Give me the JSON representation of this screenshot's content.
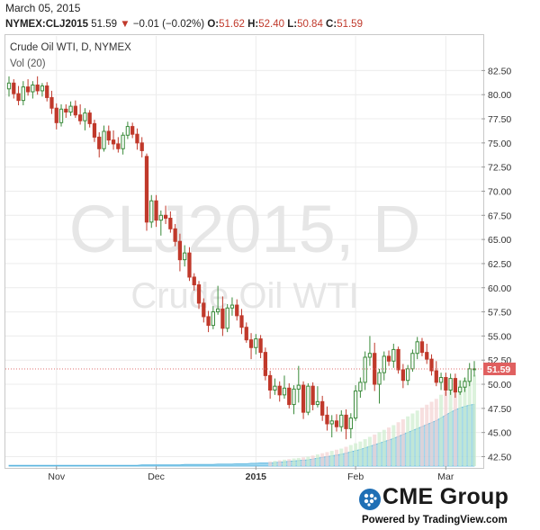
{
  "header": {
    "date": "March 05, 2015",
    "symbol": "NYMEX:CLJ2015",
    "last": "51.59",
    "change": "−0.01 (−0.02%)",
    "open_label": "O:",
    "open": "51.62",
    "high_label": "H:",
    "high": "52.40",
    "low_label": "L:",
    "low": "50.84",
    "close_label": "C:",
    "close": "51.59"
  },
  "footer": {
    "brand": "CME Group",
    "powered": "Powered by TradingView.com"
  },
  "colors": {
    "up": "#3a8a3a",
    "down": "#c0392b",
    "volume_area": "#7ec8e8",
    "price_line": "#e07070",
    "watermark": "#e6e6e6"
  },
  "chart_data": {
    "type": "candlestick",
    "title": "Crude Oil WTI, D, NYMEX",
    "volume_label": "Vol (20)",
    "watermark_symbol": "CLJ2015, D",
    "watermark_name": "Crude Oil WTI",
    "ylim": [
      41.8,
      84.4
    ],
    "y_ticks": [
      "82.50",
      "80.00",
      "77.50",
      "75.00",
      "72.50",
      "70.00",
      "67.50",
      "65.00",
      "62.50",
      "60.00",
      "57.50",
      "55.00",
      "52.50",
      "50.00",
      "47.50",
      "45.00",
      "42.50"
    ],
    "x_ticks": [
      {
        "label": "Nov",
        "index": 10,
        "bold": false
      },
      {
        "label": "Dec",
        "index": 31,
        "bold": false
      },
      {
        "label": "2015",
        "index": 52,
        "bold": true
      },
      {
        "label": "Feb",
        "index": 73,
        "bold": false
      },
      {
        "label": "Mar",
        "index": 92,
        "bold": false
      }
    ],
    "current_price_label": "51.59",
    "current_price": 51.59,
    "candles": [
      {
        "o": 80.6,
        "h": 81.9,
        "l": 79.8,
        "c": 81.2
      },
      {
        "o": 81.2,
        "h": 81.6,
        "l": 79.6,
        "c": 80.1
      },
      {
        "o": 80.1,
        "h": 80.9,
        "l": 78.9,
        "c": 79.4
      },
      {
        "o": 79.4,
        "h": 81.4,
        "l": 78.9,
        "c": 80.8
      },
      {
        "o": 80.8,
        "h": 81.6,
        "l": 79.9,
        "c": 80.3
      },
      {
        "o": 80.3,
        "h": 81.4,
        "l": 79.6,
        "c": 81.0
      },
      {
        "o": 81.0,
        "h": 81.9,
        "l": 80.0,
        "c": 80.4
      },
      {
        "o": 80.4,
        "h": 81.2,
        "l": 79.8,
        "c": 80.9
      },
      {
        "o": 80.9,
        "h": 81.3,
        "l": 79.3,
        "c": 79.7
      },
      {
        "o": 79.7,
        "h": 80.4,
        "l": 78.0,
        "c": 78.6
      },
      {
        "o": 78.6,
        "h": 79.1,
        "l": 76.4,
        "c": 77.1
      },
      {
        "o": 77.1,
        "h": 79.0,
        "l": 76.7,
        "c": 78.5
      },
      {
        "o": 78.5,
        "h": 79.0,
        "l": 77.6,
        "c": 78.2
      },
      {
        "o": 78.2,
        "h": 79.3,
        "l": 77.8,
        "c": 78.8
      },
      {
        "o": 78.8,
        "h": 79.4,
        "l": 77.6,
        "c": 77.9
      },
      {
        "o": 77.9,
        "h": 79.0,
        "l": 76.9,
        "c": 77.3
      },
      {
        "o": 77.3,
        "h": 78.6,
        "l": 76.3,
        "c": 78.1
      },
      {
        "o": 78.1,
        "h": 78.4,
        "l": 76.6,
        "c": 77.0
      },
      {
        "o": 77.0,
        "h": 77.4,
        "l": 75.1,
        "c": 75.6
      },
      {
        "o": 75.6,
        "h": 76.1,
        "l": 73.5,
        "c": 74.4
      },
      {
        "o": 74.4,
        "h": 76.8,
        "l": 74.1,
        "c": 76.2
      },
      {
        "o": 76.2,
        "h": 76.8,
        "l": 74.8,
        "c": 75.3
      },
      {
        "o": 75.3,
        "h": 76.3,
        "l": 74.3,
        "c": 74.9
      },
      {
        "o": 74.9,
        "h": 75.6,
        "l": 74.0,
        "c": 74.4
      },
      {
        "o": 74.4,
        "h": 76.1,
        "l": 73.8,
        "c": 75.8
      },
      {
        "o": 75.8,
        "h": 77.2,
        "l": 75.4,
        "c": 76.7
      },
      {
        "o": 76.7,
        "h": 77.1,
        "l": 75.5,
        "c": 75.9
      },
      {
        "o": 75.9,
        "h": 76.5,
        "l": 74.3,
        "c": 75.0
      },
      {
        "o": 75.0,
        "h": 75.6,
        "l": 73.5,
        "c": 74.2
      },
      {
        "o": 73.6,
        "h": 73.9,
        "l": 65.9,
        "c": 66.8
      },
      {
        "o": 66.8,
        "h": 69.6,
        "l": 66.2,
        "c": 69.0
      },
      {
        "o": 69.0,
        "h": 69.6,
        "l": 66.3,
        "c": 67.0
      },
      {
        "o": 67.0,
        "h": 68.0,
        "l": 65.4,
        "c": 67.5
      },
      {
        "o": 67.5,
        "h": 68.5,
        "l": 66.6,
        "c": 67.2
      },
      {
        "o": 67.2,
        "h": 67.9,
        "l": 65.7,
        "c": 66.1
      },
      {
        "o": 66.1,
        "h": 66.6,
        "l": 64.3,
        "c": 64.8
      },
      {
        "o": 64.8,
        "h": 65.6,
        "l": 61.7,
        "c": 62.9
      },
      {
        "o": 62.9,
        "h": 64.4,
        "l": 62.2,
        "c": 63.6
      },
      {
        "o": 63.6,
        "h": 64.2,
        "l": 60.7,
        "c": 61.1
      },
      {
        "o": 61.1,
        "h": 61.5,
        "l": 59.7,
        "c": 60.3
      },
      {
        "o": 60.3,
        "h": 60.7,
        "l": 57.8,
        "c": 58.4
      },
      {
        "o": 58.4,
        "h": 58.9,
        "l": 56.4,
        "c": 57.0
      },
      {
        "o": 57.0,
        "h": 57.6,
        "l": 55.4,
        "c": 56.1
      },
      {
        "o": 56.1,
        "h": 58.1,
        "l": 55.7,
        "c": 57.5
      },
      {
        "o": 57.5,
        "h": 60.2,
        "l": 57.2,
        "c": 57.8
      },
      {
        "o": 57.8,
        "h": 59.1,
        "l": 55.0,
        "c": 55.8
      },
      {
        "o": 55.8,
        "h": 58.3,
        "l": 55.4,
        "c": 57.9
      },
      {
        "o": 57.9,
        "h": 59.0,
        "l": 57.1,
        "c": 58.2
      },
      {
        "o": 58.2,
        "h": 58.8,
        "l": 56.6,
        "c": 57.1
      },
      {
        "o": 57.1,
        "h": 57.8,
        "l": 55.2,
        "c": 55.9
      },
      {
        "o": 55.9,
        "h": 56.4,
        "l": 54.3,
        "c": 54.6
      },
      {
        "o": 54.6,
        "h": 55.3,
        "l": 52.6,
        "c": 53.8
      },
      {
        "o": 53.8,
        "h": 55.2,
        "l": 53.1,
        "c": 54.7
      },
      {
        "o": 54.7,
        "h": 55.1,
        "l": 52.7,
        "c": 53.3
      },
      {
        "o": 53.3,
        "h": 53.8,
        "l": 50.4,
        "c": 50.9
      },
      {
        "o": 50.9,
        "h": 51.4,
        "l": 48.5,
        "c": 49.4
      },
      {
        "o": 49.4,
        "h": 50.6,
        "l": 48.9,
        "c": 49.8
      },
      {
        "o": 49.8,
        "h": 50.3,
        "l": 48.2,
        "c": 48.9
      },
      {
        "o": 48.9,
        "h": 50.9,
        "l": 48.5,
        "c": 49.6
      },
      {
        "o": 49.6,
        "h": 50.1,
        "l": 47.5,
        "c": 47.9
      },
      {
        "o": 47.9,
        "h": 49.9,
        "l": 46.9,
        "c": 49.5
      },
      {
        "o": 49.5,
        "h": 51.9,
        "l": 48.1,
        "c": 49.9
      },
      {
        "o": 49.9,
        "h": 50.3,
        "l": 46.4,
        "c": 47.1
      },
      {
        "o": 47.1,
        "h": 50.1,
        "l": 46.8,
        "c": 49.8
      },
      {
        "o": 49.8,
        "h": 50.2,
        "l": 47.3,
        "c": 47.9
      },
      {
        "o": 47.9,
        "h": 49.8,
        "l": 47.6,
        "c": 48.2
      },
      {
        "o": 48.2,
        "h": 48.8,
        "l": 46.2,
        "c": 46.8
      },
      {
        "o": 46.8,
        "h": 47.7,
        "l": 45.2,
        "c": 45.9
      },
      {
        "o": 45.9,
        "h": 46.8,
        "l": 44.5,
        "c": 46.2
      },
      {
        "o": 46.2,
        "h": 46.9,
        "l": 45.1,
        "c": 45.6
      },
      {
        "o": 45.6,
        "h": 47.3,
        "l": 45.1,
        "c": 46.8
      },
      {
        "o": 46.8,
        "h": 47.4,
        "l": 44.3,
        "c": 45.4
      },
      {
        "o": 45.4,
        "h": 47.0,
        "l": 44.4,
        "c": 46.5
      },
      {
        "o": 46.5,
        "h": 49.9,
        "l": 46.2,
        "c": 49.3
      },
      {
        "o": 49.3,
        "h": 50.7,
        "l": 48.6,
        "c": 50.2
      },
      {
        "o": 50.2,
        "h": 53.4,
        "l": 49.4,
        "c": 52.8
      },
      {
        "o": 52.8,
        "h": 55.0,
        "l": 51.9,
        "c": 53.2
      },
      {
        "o": 53.2,
        "h": 54.3,
        "l": 49.3,
        "c": 50.0
      },
      {
        "o": 50.0,
        "h": 51.6,
        "l": 48.0,
        "c": 51.2
      },
      {
        "o": 51.2,
        "h": 53.4,
        "l": 50.4,
        "c": 52.9
      },
      {
        "o": 52.9,
        "h": 53.5,
        "l": 51.9,
        "c": 52.4
      },
      {
        "o": 52.4,
        "h": 54.2,
        "l": 51.7,
        "c": 53.6
      },
      {
        "o": 53.6,
        "h": 53.9,
        "l": 51.1,
        "c": 51.5
      },
      {
        "o": 51.5,
        "h": 52.1,
        "l": 49.6,
        "c": 50.4
      },
      {
        "o": 50.4,
        "h": 52.0,
        "l": 49.9,
        "c": 51.6
      },
      {
        "o": 51.6,
        "h": 53.6,
        "l": 51.3,
        "c": 53.2
      },
      {
        "o": 53.2,
        "h": 54.9,
        "l": 52.6,
        "c": 54.4
      },
      {
        "o": 54.4,
        "h": 54.8,
        "l": 52.9,
        "c": 53.3
      },
      {
        "o": 53.3,
        "h": 54.2,
        "l": 52.1,
        "c": 52.6
      },
      {
        "o": 52.6,
        "h": 53.1,
        "l": 50.9,
        "c": 51.4
      },
      {
        "o": 51.4,
        "h": 52.4,
        "l": 49.8,
        "c": 50.2
      },
      {
        "o": 50.2,
        "h": 51.2,
        "l": 49.4,
        "c": 50.7
      },
      {
        "o": 50.7,
        "h": 51.2,
        "l": 48.8,
        "c": 49.4
      },
      {
        "o": 49.4,
        "h": 51.1,
        "l": 48.9,
        "c": 50.6
      },
      {
        "o": 50.6,
        "h": 51.1,
        "l": 48.6,
        "c": 49.2
      },
      {
        "o": 49.2,
        "h": 50.4,
        "l": 48.9,
        "c": 49.7
      },
      {
        "o": 49.7,
        "h": 50.7,
        "l": 49.2,
        "c": 50.3
      },
      {
        "o": 50.3,
        "h": 52.2,
        "l": 49.8,
        "c": 51.6
      },
      {
        "o": 51.6,
        "h": 52.4,
        "l": 50.8,
        "c": 51.6
      }
    ],
    "volume": [
      0.2,
      0.2,
      0.2,
      0.2,
      0.2,
      0.2,
      0.2,
      0.2,
      0.2,
      0.2,
      0.2,
      0.2,
      0.2,
      0.2,
      0.2,
      0.2,
      0.2,
      0.2,
      0.2,
      0.2,
      0.2,
      0.2,
      0.2,
      0.2,
      0.2,
      0.2,
      0.2,
      0.2,
      0.3,
      0.3,
      0.3,
      0.3,
      0.3,
      0.3,
      0.3,
      0.3,
      0.3,
      0.4,
      0.4,
      0.4,
      0.4,
      0.4,
      0.4,
      0.4,
      0.5,
      0.5,
      0.5,
      0.5,
      0.6,
      0.6,
      0.6,
      0.7,
      0.7,
      0.8,
      0.8,
      0.8,
      0.9,
      1.0,
      1.1,
      1.2,
      1.3,
      1.4,
      1.5,
      1.6,
      1.8,
      2.0,
      2.2,
      2.4,
      2.6,
      2.8,
      3.0,
      3.3,
      3.6,
      3.9,
      4.2,
      4.6,
      5.0,
      5.4,
      5.8,
      6.2,
      6.6,
      7.0,
      7.5,
      8.0,
      8.5,
      9.0,
      9.5,
      10.0,
      10.5,
      11.0,
      11.5,
      12.2,
      12.9,
      13.6,
      14.2,
      14.7,
      15.1,
      15.4,
      15.6
    ]
  }
}
